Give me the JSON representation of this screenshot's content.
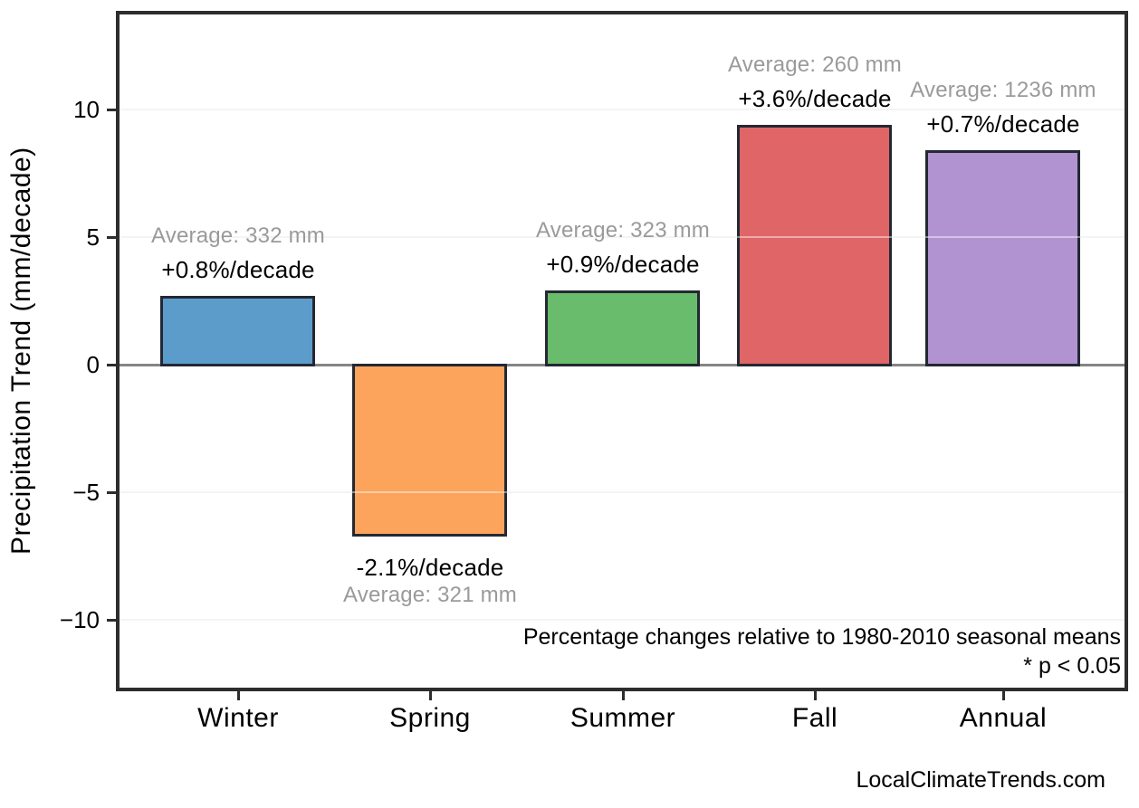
{
  "chart_data": {
    "type": "bar",
    "title": "",
    "xlabel": "",
    "ylabel": "Precipitation Trend (mm/decade)",
    "categories": [
      "Winter",
      "Spring",
      "Summer",
      "Fall",
      "Annual"
    ],
    "values": [
      2.7,
      -6.7,
      2.9,
      9.4,
      8.4
    ],
    "values_unit": "mm/decade",
    "percent_labels": [
      "+0.8%/decade",
      "-2.1%/decade",
      "+0.9%/decade",
      "+3.6%/decade",
      "+0.7%/decade"
    ],
    "average_labels": [
      "Average: 332 mm",
      "Average: 321 mm",
      "Average: 323 mm",
      "Average: 260 mm",
      "Average: 1236 mm"
    ],
    "label_positions": [
      "above",
      "below",
      "above",
      "above",
      "above"
    ],
    "bar_colors": [
      "#5c9cca",
      "#fca45c",
      "#69bc6c",
      "#df6566",
      "#b193d2"
    ],
    "yticks": [
      10,
      5,
      0,
      -5,
      -10
    ],
    "ytick_labels": [
      "10",
      "5",
      "0",
      "−5",
      "−10"
    ],
    "ylim": [
      -12.9,
      13.9
    ],
    "grid": true,
    "legend": null,
    "annotations": [
      "Percentage changes relative to 1980-2010 seasonal means",
      "* p < 0.05"
    ],
    "watermark": "LocalClimateTrends.com"
  },
  "colors": {
    "bar_border": "#232833",
    "zero_line": "#858585",
    "gridline": "#ebebeb",
    "frame": "#2d2d2d",
    "average_text": "#9a9a9a",
    "main_text": "#000000",
    "background": "#ffffff"
  }
}
